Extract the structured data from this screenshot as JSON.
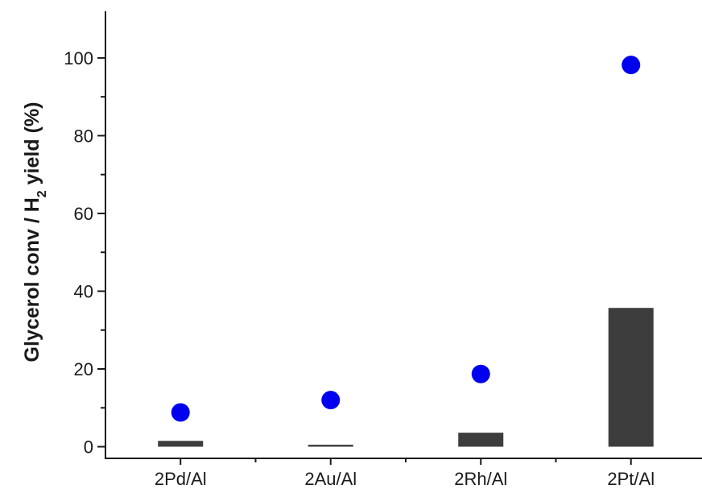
{
  "chart_data": {
    "type": "bar",
    "categories": [
      "2Pd/Al",
      "2Au/Al",
      "2Rh/Al",
      "2Pt/Al"
    ],
    "series": [
      {
        "type": "bar",
        "values": [
          1.5,
          0.5,
          3.6,
          35.7
        ],
        "color": "#3d3d3d"
      },
      {
        "type": "scatter",
        "values": [
          8.8,
          12.0,
          18.7,
          98.2
        ],
        "color": "#0000ee"
      }
    ],
    "ylabel": {
      "main": "Glycerol conv / H",
      "sub": "2",
      "rest": " yield (%)"
    },
    "yticks": [
      0,
      20,
      40,
      60,
      80,
      100
    ],
    "ylim": [
      -3,
      112
    ],
    "grid": false,
    "legend": "none"
  }
}
